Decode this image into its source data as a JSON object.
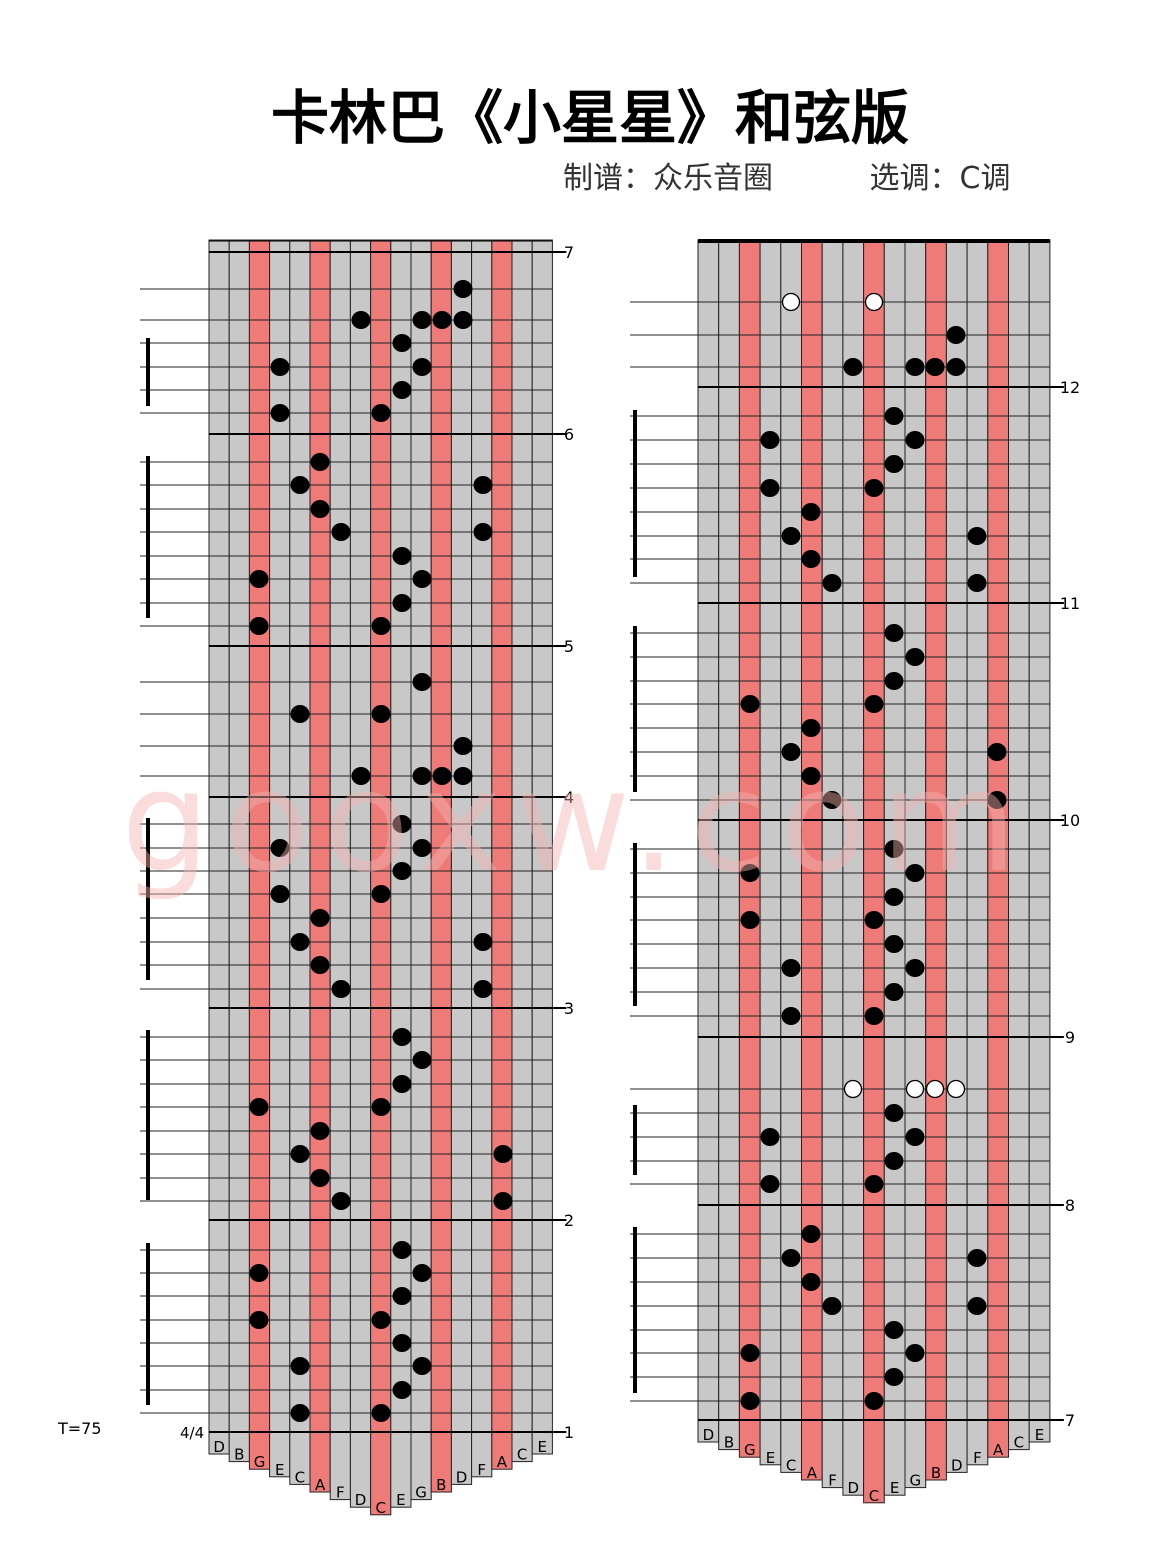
{
  "header": {
    "title": "卡林巴《小星星》和弦版",
    "arranger": "制谱：众乐音圈",
    "key": "选调：C调"
  },
  "tempo": "T=75",
  "time_signature": "4/4",
  "watermark": "gooxw.com",
  "left_panel": {
    "measures": [
      1,
      2,
      3,
      4,
      5,
      6,
      7
    ],
    "keys": [
      "D",
      "B",
      "G",
      "E",
      "C",
      "A",
      "F",
      "D",
      "C",
      "E",
      "G",
      "B",
      "D",
      "F",
      "A",
      "C",
      "E"
    ]
  },
  "right_panel": {
    "measures": [
      7,
      8,
      9,
      10,
      11,
      12
    ],
    "keys": [
      "D",
      "B",
      "G",
      "E",
      "C",
      "A",
      "F",
      "D",
      "C",
      "E",
      "G",
      "B",
      "D",
      "F",
      "A",
      "C",
      "E"
    ]
  }
}
